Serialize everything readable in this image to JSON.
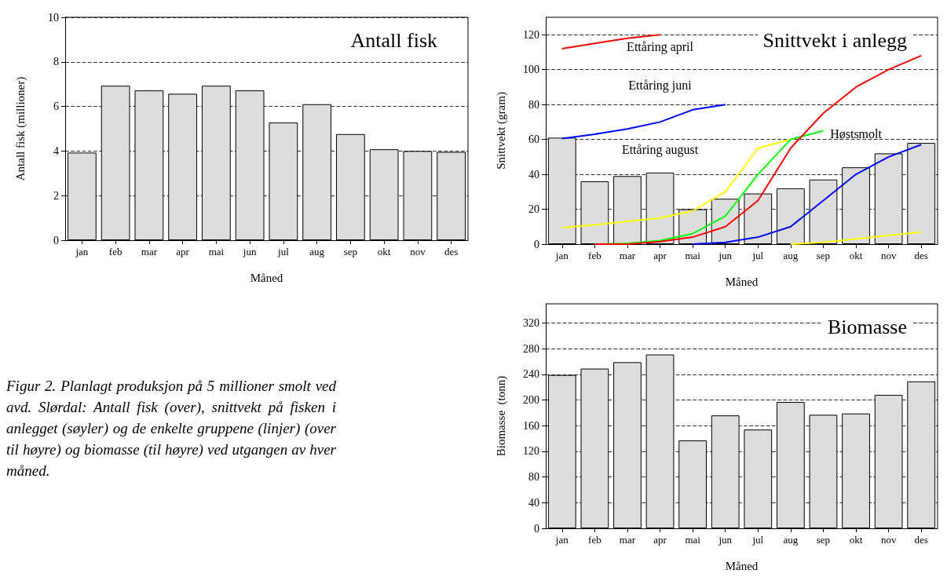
{
  "chart_data": [
    {
      "type": "bar",
      "title": "Antall fisk",
      "xlabel": "Måned",
      "ylabel": "Antall fisk (millioner)",
      "categories": [
        "jan",
        "feb",
        "mar",
        "apr",
        "mai",
        "jun",
        "jul",
        "aug",
        "sep",
        "okt",
        "nov",
        "des"
      ],
      "series": [
        {
          "color": "#dddddd",
          "values": [
            3.93,
            6.93,
            6.72,
            6.57,
            6.93,
            6.72,
            5.28,
            6.1,
            4.76,
            4.08,
            4.0,
            3.96
          ]
        }
      ],
      "ylim": [
        0,
        10
      ],
      "yticks": [
        0,
        2,
        4,
        6,
        8,
        10
      ],
      "grid": "y",
      "annotations": [
        "Figur 2. Planlagt produksjon på 5 millioner smolt ved avd. Slørdal: Antall fisk (over), snittvekt på fisken i anlegget (søyler) og de enkelte gruppene (linjer) (over til høyre) og biomasse (til høyre) ved utgangen av hver måned."
      ]
    },
    {
      "type": "bar",
      "title": "Snittvekt i anlegg",
      "xlabel": "Måned",
      "ylabel": "Snittvekt (gram)",
      "categories": [
        "jan",
        "feb",
        "mar",
        "apr",
        "mai",
        "jun",
        "jul",
        "aug",
        "sep",
        "okt",
        "nov",
        "des"
      ],
      "series": [
        {
          "color": "#dddddd",
          "values": [
            61,
            36,
            39,
            41,
            20,
            26,
            29,
            32,
            37,
            44,
            52,
            58
          ]
        },
        {
          "type": "line",
          "color": "#ff0000",
          "values": [
            112,
            115,
            118,
            120,
            null,
            null,
            null,
            null,
            null,
            null,
            null,
            null
          ]
        },
        {
          "type": "line",
          "color": "#0000ff",
          "values": [
            60.5,
            63,
            66,
            70,
            77,
            80,
            null,
            null,
            null,
            null,
            null,
            null
          ]
        },
        {
          "type": "line",
          "color": "#ffff00",
          "values": [
            9.5,
            11,
            13,
            15,
            19,
            30,
            55,
            60,
            null,
            null,
            null,
            null
          ]
        },
        {
          "type": "line",
          "color": "#00ff00",
          "values": [
            null,
            0,
            0.5,
            2,
            6,
            16,
            40,
            60,
            65,
            null,
            null,
            null
          ]
        },
        {
          "type": "line",
          "color": "#ff0000",
          "values": [
            null,
            0,
            0,
            1.5,
            4,
            10,
            25,
            55,
            75,
            90,
            100,
            108
          ]
        },
        {
          "type": "line",
          "color": "#0000ff",
          "values": [
            null,
            null,
            null,
            null,
            0,
            1,
            4,
            10,
            25,
            40,
            50,
            57
          ]
        },
        {
          "type": "line",
          "color": "#ffff00",
          "values": [
            null,
            null,
            null,
            null,
            null,
            null,
            null,
            0,
            1,
            3,
            5,
            7
          ]
        }
      ],
      "ylim": [
        0,
        130
      ],
      "yticks": [
        0,
        20,
        40,
        60,
        80,
        100,
        120
      ],
      "grid": "y",
      "marker": "none",
      "annotations": [
        "Ettåring april",
        "Ettåring juni",
        "Ettåring august",
        "Høstsmolt"
      ]
    },
    {
      "type": "bar",
      "title": "Biomasse",
      "xlabel": "Måned",
      "ylabel": "Biomasse  (tonn)",
      "categories": [
        "jan",
        "feb",
        "mar",
        "apr",
        "mai",
        "jun",
        "jul",
        "aug",
        "sep",
        "okt",
        "nov",
        "des"
      ],
      "series": [
        {
          "color": "#dddddd",
          "values": [
            239,
            249,
            259,
            271,
            137,
            176,
            154,
            197,
            177,
            179,
            208,
            229
          ]
        }
      ],
      "ylim": [
        0,
        350
      ],
      "yticks": [
        0,
        40,
        80,
        120,
        160,
        200,
        240,
        280,
        320
      ],
      "grid": "y"
    }
  ]
}
